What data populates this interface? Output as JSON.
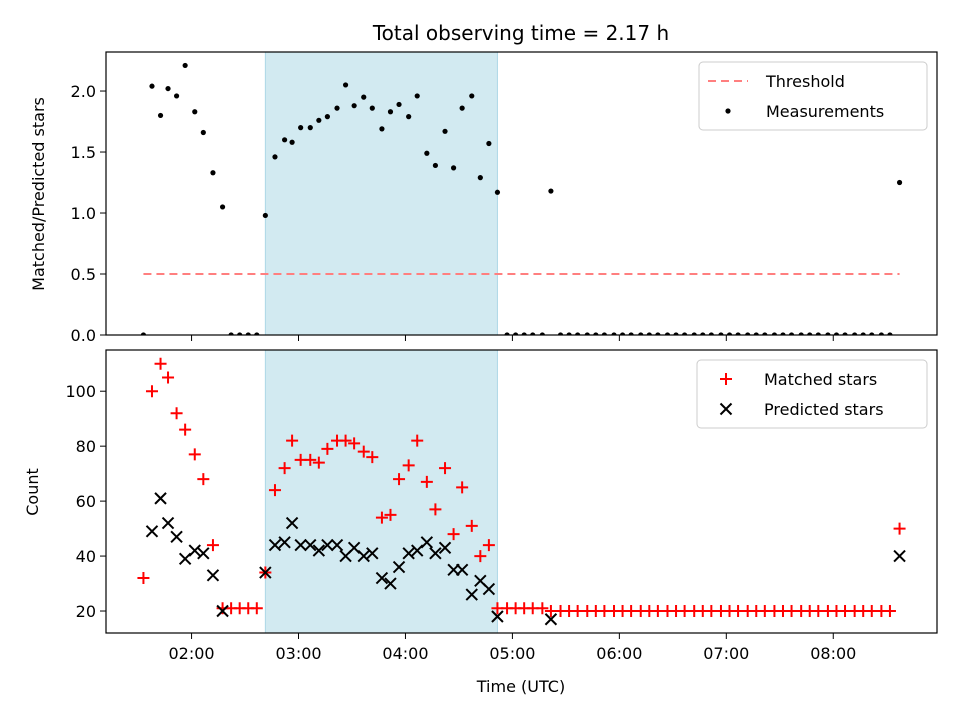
{
  "title": "Total observing time = 2.17 h",
  "colors": {
    "shade": "#add8e6",
    "threshold": "#ff7f7f",
    "matched": "#ff0000",
    "predicted": "#000000",
    "measure": "#000000"
  },
  "chart_data": [
    {
      "type": "scatter",
      "ylabel": "Matched/Predicted stars",
      "xlim": [
        1.2,
        8.97
      ],
      "ylim": [
        0,
        2.32
      ],
      "yticks": [
        0.0,
        0.5,
        1.0,
        1.5,
        2.0
      ],
      "ytick_labels": [
        "0.0",
        "0.5",
        "1.0",
        "1.5",
        "2.0"
      ],
      "shaded_region": [
        2.69,
        4.86
      ],
      "legend_position": "top-right",
      "legend": [
        "Threshold",
        "Measurements"
      ],
      "threshold": {
        "name": "Threshold",
        "y": 0.5,
        "x": [
          1.55,
          8.62
        ],
        "style": "dashed"
      },
      "series": [
        {
          "name": "Measurements",
          "x": [
            1.55,
            1.63,
            1.71,
            1.78,
            1.86,
            1.94,
            2.03,
            2.11,
            2.2,
            2.29,
            2.37,
            2.45,
            2.53,
            2.61,
            2.69,
            2.78,
            2.87,
            2.94,
            3.02,
            3.11,
            3.19,
            3.27,
            3.36,
            3.44,
            3.52,
            3.61,
            3.69,
            3.78,
            3.86,
            3.94,
            4.03,
            4.11,
            4.2,
            4.28,
            4.37,
            4.45,
            4.53,
            4.62,
            4.7,
            4.78,
            4.86,
            4.95,
            5.03,
            5.11,
            5.19,
            5.28,
            5.36,
            5.45,
            5.53,
            5.61,
            5.7,
            5.78,
            5.86,
            5.95,
            6.03,
            6.11,
            6.2,
            6.28,
            6.36,
            6.45,
            6.53,
            6.61,
            6.7,
            6.78,
            6.86,
            6.95,
            7.03,
            7.11,
            7.2,
            7.28,
            7.36,
            7.45,
            7.53,
            7.61,
            7.7,
            7.78,
            7.86,
            7.95,
            8.03,
            8.11,
            8.2,
            8.28,
            8.36,
            8.45,
            8.53,
            8.62
          ],
          "y": [
            0,
            2.04,
            1.8,
            2.02,
            1.96,
            2.21,
            1.83,
            1.66,
            1.33,
            1.05,
            0,
            0,
            0,
            0,
            0.98,
            1.46,
            1.6,
            1.58,
            1.7,
            1.7,
            1.76,
            1.79,
            1.86,
            2.05,
            1.88,
            1.95,
            1.86,
            1.69,
            1.83,
            1.89,
            1.79,
            1.96,
            1.49,
            1.39,
            1.67,
            1.37,
            1.86,
            1.96,
            1.29,
            1.57,
            1.17,
            0,
            0,
            0,
            0,
            0,
            1.18,
            0,
            0,
            0,
            0,
            0,
            0,
            0,
            0,
            0,
            0,
            0,
            0,
            0,
            0,
            0,
            0,
            0,
            0,
            0,
            0,
            0,
            0,
            0,
            0,
            0,
            0,
            0,
            0,
            0,
            0,
            0,
            0,
            0,
            0,
            0,
            0,
            0,
            0,
            1.25
          ]
        }
      ]
    },
    {
      "type": "scatter",
      "xlabel": "Time (UTC)",
      "ylabel": "Count",
      "xlim": [
        1.2,
        8.97
      ],
      "ylim": [
        12,
        115
      ],
      "xticks": [
        2,
        3,
        4,
        5,
        6,
        7,
        8
      ],
      "xtick_labels": [
        "02:00",
        "03:00",
        "04:00",
        "05:00",
        "06:00",
        "07:00",
        "08:00"
      ],
      "yticks": [
        20,
        40,
        60,
        80,
        100
      ],
      "ytick_labels": [
        "20",
        "40",
        "60",
        "80",
        "100"
      ],
      "shaded_region": [
        2.69,
        4.86
      ],
      "legend_position": "top-right",
      "legend": [
        "Matched stars",
        "Predicted stars"
      ],
      "series": [
        {
          "name": "Matched stars",
          "marker": "plus",
          "x": [
            1.55,
            1.63,
            1.71,
            1.78,
            1.86,
            1.94,
            2.03,
            2.11,
            2.2,
            2.29,
            2.37,
            2.45,
            2.53,
            2.61,
            2.69,
            2.78,
            2.87,
            2.94,
            3.02,
            3.11,
            3.19,
            3.27,
            3.36,
            3.44,
            3.52,
            3.61,
            3.69,
            3.78,
            3.86,
            3.94,
            4.03,
            4.11,
            4.2,
            4.28,
            4.37,
            4.45,
            4.53,
            4.62,
            4.7,
            4.78,
            4.86,
            4.95,
            5.03,
            5.11,
            5.19,
            5.28,
            5.36,
            5.45,
            5.53,
            5.61,
            5.7,
            5.78,
            5.86,
            5.95,
            6.03,
            6.11,
            6.2,
            6.28,
            6.36,
            6.45,
            6.53,
            6.61,
            6.7,
            6.78,
            6.86,
            6.95,
            7.03,
            7.11,
            7.2,
            7.28,
            7.36,
            7.45,
            7.53,
            7.61,
            7.7,
            7.78,
            7.86,
            7.95,
            8.03,
            8.11,
            8.2,
            8.28,
            8.36,
            8.45,
            8.53,
            8.62
          ],
          "y": [
            32,
            100,
            110,
            105,
            92,
            86,
            77,
            68,
            44,
            21,
            21,
            21,
            21,
            21,
            34,
            64,
            72,
            82,
            75,
            75,
            74,
            79,
            82,
            82,
            81,
            78,
            76,
            54,
            55,
            68,
            73,
            82,
            67,
            57,
            72,
            48,
            65,
            51,
            40,
            44,
            21,
            21,
            21,
            21,
            21,
            21,
            20,
            20,
            20,
            20,
            20,
            20,
            20,
            20,
            20,
            20,
            20,
            20,
            20,
            20,
            20,
            20,
            20,
            20,
            20,
            20,
            20,
            20,
            20,
            20,
            20,
            20,
            20,
            20,
            20,
            20,
            20,
            20,
            20,
            20,
            20,
            20,
            20,
            20,
            20,
            50
          ]
        },
        {
          "name": "Predicted stars",
          "marker": "x",
          "x": [
            1.63,
            1.71,
            1.78,
            1.86,
            1.94,
            2.03,
            2.11,
            2.2,
            2.29,
            2.69,
            2.78,
            2.87,
            2.94,
            3.02,
            3.11,
            3.19,
            3.27,
            3.36,
            3.44,
            3.52,
            3.61,
            3.69,
            3.78,
            3.86,
            3.94,
            4.03,
            4.11,
            4.2,
            4.28,
            4.37,
            4.45,
            4.53,
            4.62,
            4.7,
            4.78,
            4.86,
            5.36,
            8.62
          ],
          "y": [
            49,
            61,
            52,
            47,
            39,
            42,
            41,
            33,
            20,
            34,
            44,
            45,
            52,
            44,
            44,
            42,
            44,
            44,
            40,
            43,
            40,
            41,
            32,
            30,
            36,
            41,
            42,
            45,
            41,
            43,
            35,
            35,
            26,
            31,
            28,
            18,
            17,
            40
          ]
        }
      ]
    }
  ]
}
